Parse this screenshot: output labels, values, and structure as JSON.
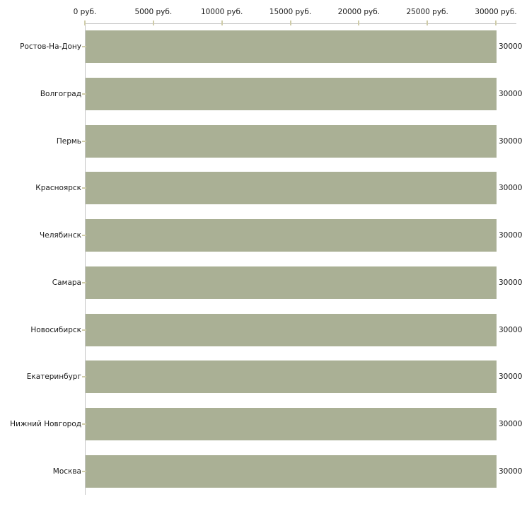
{
  "chart_data": {
    "type": "bar",
    "orientation": "horizontal",
    "title": "",
    "xlabel": "",
    "ylabel": "",
    "categories": [
      "Ростов-На-Дону",
      "Волгоград",
      "Пермь",
      "Красноярск",
      "Челябинск",
      "Самара",
      "Новосибирск",
      "Екатеринбург",
      "Нижний Новгород",
      "Москва"
    ],
    "values": [
      30000,
      30000,
      30000,
      30000,
      30000,
      30000,
      30000,
      30000,
      30000,
      30000
    ],
    "bar_value_labels": [
      "30000",
      "30000",
      "30000",
      "30000",
      "30000",
      "30000",
      "30000",
      "30000",
      "30000",
      "30000"
    ],
    "xlim": [
      0,
      30000
    ],
    "x_ticks": [
      0,
      5000,
      10000,
      15000,
      20000,
      25000,
      30000
    ],
    "x_tick_labels": [
      "0 руб.",
      "5000 руб.",
      "10000 руб.",
      "15000 руб.",
      "20000 руб.",
      "25000 руб.",
      "30000 руб."
    ],
    "grid": false,
    "legend": false,
    "colors": {
      "bar": "#aab095",
      "axis_line": "#c6c6c6",
      "tick_mark": "#cfcca9",
      "text": "#1a1a1a",
      "background": "#ffffff"
    }
  }
}
